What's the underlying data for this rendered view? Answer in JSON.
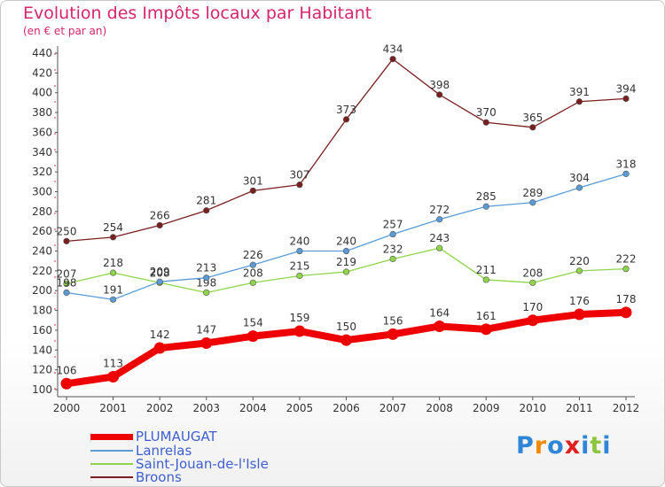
{
  "title": "Evolution des Impôts locaux par Habitant",
  "subtitle": "(en € et par an)",
  "logo_text": "Proxiti",
  "chart_data": {
    "type": "line",
    "title": "Evolution des Impôts locaux par Habitant",
    "subtitle": "(en € et par an)",
    "x": [
      2000,
      2001,
      2002,
      2003,
      2004,
      2005,
      2006,
      2007,
      2008,
      2009,
      2010,
      2011,
      2012
    ],
    "ylim": [
      100,
      440
    ],
    "yticks": [
      100,
      120,
      140,
      160,
      180,
      200,
      220,
      240,
      260,
      280,
      300,
      320,
      340,
      360,
      380,
      400,
      420,
      440
    ],
    "grid": false,
    "legend_position": "bottom-left",
    "series": [
      {
        "name": "PLUMAUGAT",
        "color": "#ee0000",
        "values": [
          106,
          113,
          142,
          147,
          154,
          159,
          150,
          156,
          164,
          161,
          170,
          176,
          178
        ]
      },
      {
        "name": "Lanrelas",
        "color": "#5b9bd5",
        "values": [
          198,
          191,
          209,
          213,
          226,
          240,
          240,
          257,
          272,
          285,
          289,
          304,
          318
        ]
      },
      {
        "name": "Saint-Jouan-de-l'Isle",
        "color": "#8fd44a",
        "values": [
          207,
          218,
          208,
          198,
          208,
          215,
          219,
          232,
          243,
          211,
          208,
          220,
          222
        ]
      },
      {
        "name": "Broons",
        "color": "#7a1f1f",
        "values": [
          250,
          254,
          266,
          281,
          301,
          307,
          373,
          434,
          398,
          370,
          365,
          391,
          394
        ]
      }
    ]
  }
}
